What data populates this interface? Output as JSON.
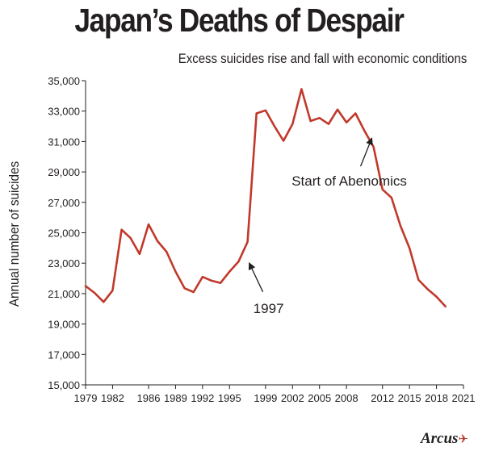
{
  "chart_data": {
    "type": "line",
    "title": "Japan’s Deaths of Despair",
    "subtitle": "Excess suicides rise and fall with economic conditions",
    "ylabel": "Annual number of suicides",
    "xlabel": "",
    "ylim": [
      15000,
      35000
    ],
    "xlim": [
      1979,
      2021
    ],
    "y_ticks": [
      15000,
      17000,
      19000,
      21000,
      23000,
      25000,
      27000,
      29000,
      31000,
      33000,
      35000
    ],
    "y_tick_labels": [
      "15,000",
      "17,000",
      "19,000",
      "21,000",
      "23,000",
      "25,000",
      "27,000",
      "29,000",
      "31,000",
      "33,000",
      "35,000"
    ],
    "x_ticks": [
      1979,
      1982,
      1986,
      1989,
      1992,
      1995,
      1999,
      2002,
      2005,
      2008,
      2012,
      2015,
      2018,
      2021
    ],
    "x_tick_labels": [
      "1979",
      "1982",
      "1986",
      "1989",
      "1992",
      "1995",
      "1999",
      "2002",
      "2005",
      "2008",
      "2012",
      "2015",
      "2018",
      "2021"
    ],
    "grid": false,
    "line_color": "#c0392b",
    "series": [
      {
        "x": [
          1979,
          1980,
          1981,
          1982,
          1983,
          1984,
          1985,
          1986,
          1987,
          1988,
          1989,
          1990,
          1991,
          1992,
          1993,
          1994,
          1995,
          1996,
          1997,
          1998,
          1999,
          2000,
          2001,
          2002,
          2003,
          2004,
          2005,
          2006,
          2007,
          2008,
          2009,
          2010,
          2011,
          2012,
          2013,
          2014,
          2015,
          2016,
          2017,
          2018,
          2019
        ],
        "values": [
          21500,
          21050,
          20450,
          21200,
          25200,
          24650,
          23600,
          25550,
          24450,
          23750,
          22450,
          21350,
          21100,
          22100,
          21850,
          21700,
          22450,
          23100,
          24400,
          32850,
          33050,
          32000,
          31050,
          32150,
          34450,
          32350,
          32550,
          32150,
          33100,
          32250,
          32850,
          31700,
          30650,
          27850,
          27300,
          25450,
          24000,
          21900,
          21300,
          20800,
          20150
        ]
      }
    ],
    "annotations": [
      {
        "text": "1997",
        "x": 1997,
        "y": 24400
      },
      {
        "text": "Start of Abenomics",
        "x": 2011,
        "y": 31600
      }
    ]
  },
  "logo": {
    "text": "Arcus",
    "mark": "✈"
  }
}
